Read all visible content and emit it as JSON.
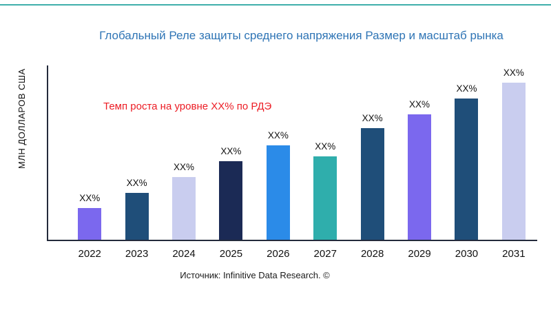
{
  "page": {
    "title": "Глобальный Реле защиты среднего напряжения Размер и масштаб рынка",
    "title_color": "#2E74B5",
    "top_rule_color": "#3FAFAA",
    "source": "Источник: Infinitive Data Research. ©"
  },
  "annotation": {
    "text": "Темп роста на уровне XX% по РДЭ",
    "color": "#EC1C24"
  },
  "y_axis": {
    "label": "МЛН ДОЛЛАРОВ США"
  },
  "chart_data": {
    "type": "bar",
    "title": "Глобальный Реле защиты среднего напряжения Размер и масштаб рынка",
    "xlabel": "",
    "ylabel": "МЛН ДОЛЛАРОВ США",
    "categories": [
      "2022",
      "2023",
      "2024",
      "2025",
      "2026",
      "2027",
      "2028",
      "2029",
      "2030",
      "2031"
    ],
    "values": [
      18,
      27,
      36,
      45,
      54,
      48,
      64,
      72,
      81,
      90
    ],
    "values_note": "relative bar heights in % of plot area; no numeric axis ticks shown",
    "value_labels": [
      "XX%",
      "XX%",
      "XX%",
      "XX%",
      "XX%",
      "XX%",
      "XX%",
      "XX%",
      "XX%",
      "XX%"
    ],
    "colors": [
      "#7B68EE",
      "#1F4E79",
      "#C9CDEF",
      "#1B2A55",
      "#2B8BE8",
      "#2FAEAC",
      "#1F4E79",
      "#7B68EE",
      "#1F4E79",
      "#C9CDEF"
    ],
    "axis_color": "#232A3B",
    "grid": false,
    "legend": false,
    "annotations": [
      "Темп роста на уровне XX% по РДЭ"
    ]
  }
}
